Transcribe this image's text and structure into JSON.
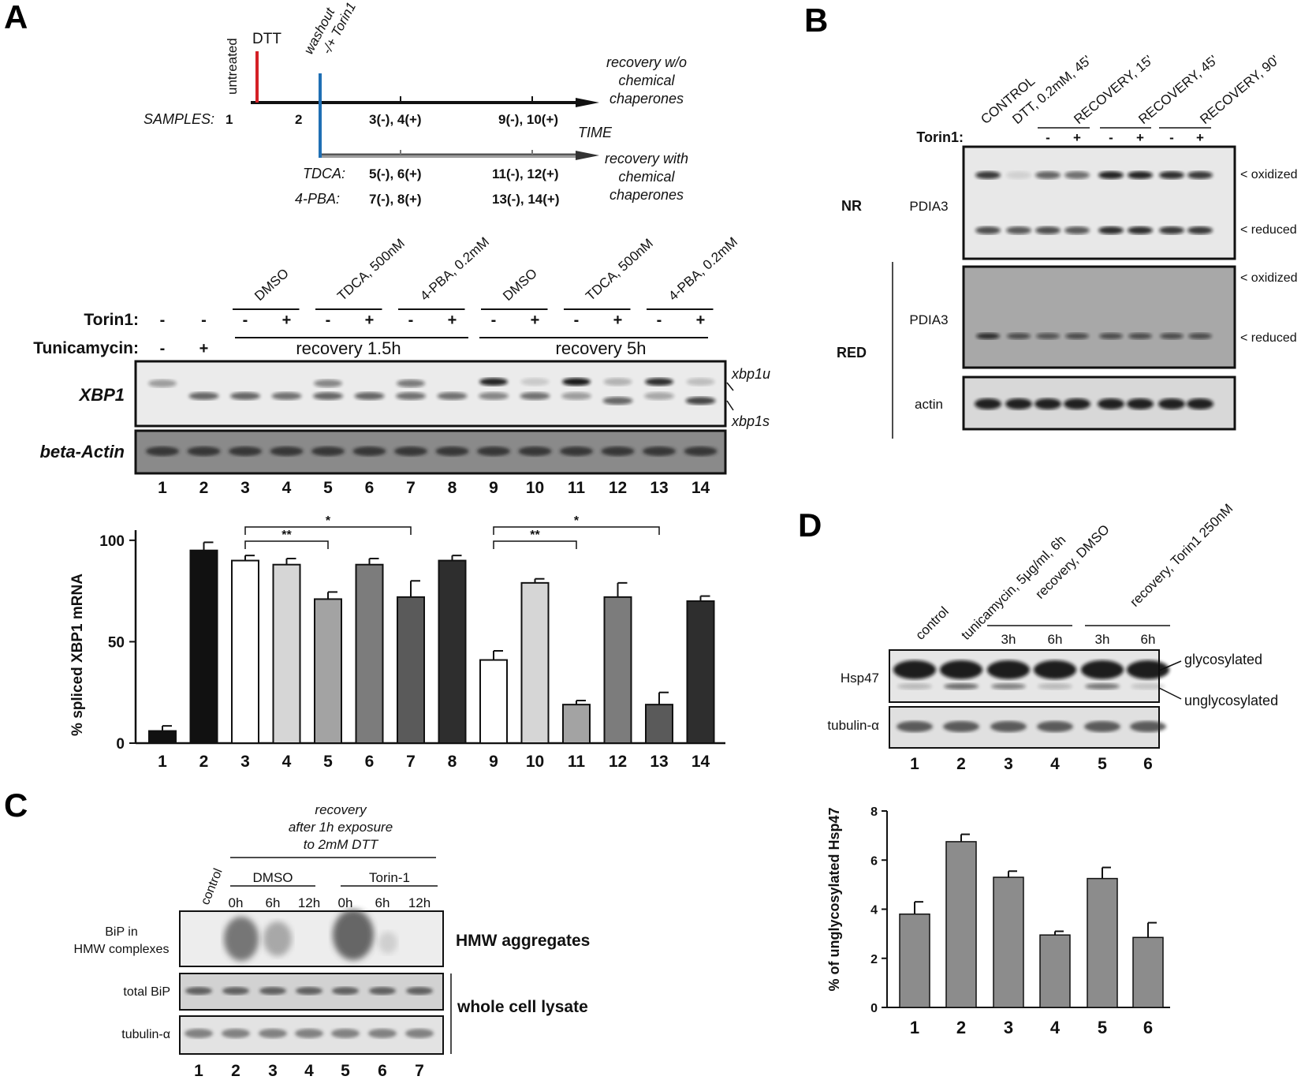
{
  "panels": {
    "A": "A",
    "B": "B",
    "C": "C",
    "D": "D"
  },
  "panelA": {
    "timeline": {
      "untreated": "untreated",
      "dtt": "DTT",
      "washout": "washout",
      "torin": "-/+ Torin1",
      "samples_label": "SAMPLES:",
      "s1": "1",
      "s2": "2",
      "s34": "3(-), 4(+)",
      "s910": "9(-), 10(+)",
      "time": "TIME",
      "recovery_wo": [
        "recovery w/o",
        "chemical",
        "chaperones"
      ],
      "recovery_with": [
        "recovery with",
        "chemical",
        "chaperones"
      ],
      "tdca_label": "TDCA:",
      "s56": "5(-), 6(+)",
      "s1112": "11(-), 12(+)",
      "pba_label": "4-PBA:",
      "s78": "7(-), 8(+)",
      "s1314": "13(-), 14(+)"
    },
    "treatments": [
      "DMSO",
      "TDCA, 500nM",
      "4-PBA, 0.2mM",
      "DMSO",
      "TDCA, 500nM",
      "4-PBA, 0.2mM"
    ],
    "torin_label": "Torin1:",
    "tunicamycin_label": "Tunicamycin:",
    "torin_signs": [
      "-",
      "-",
      "-",
      "+",
      "-",
      "+",
      "-",
      "+",
      "-",
      "+",
      "-",
      "+",
      "-",
      "+"
    ],
    "tunicamycin_signs": [
      "-",
      "+"
    ],
    "recovery_15": "recovery 1.5h",
    "recovery_5": "recovery 5h",
    "gel_rows": [
      "XBP1",
      "beta-Actin"
    ],
    "band_labels": [
      "xbp1u",
      "xbp1s"
    ],
    "lanes": [
      "1",
      "2",
      "3",
      "4",
      "5",
      "6",
      "7",
      "8",
      "9",
      "10",
      "11",
      "12",
      "13",
      "14"
    ],
    "chart_data": {
      "type": "bar",
      "ylabel": "% spliced XBP1 mRNA",
      "categories": [
        "1",
        "2",
        "3",
        "4",
        "5",
        "6",
        "7",
        "8",
        "9",
        "10",
        "11",
        "12",
        "13",
        "14"
      ],
      "values": [
        6,
        95,
        90,
        88,
        71,
        88,
        72,
        90,
        41,
        79,
        19,
        72,
        19,
        70
      ],
      "errors": [
        2.5,
        4,
        2.5,
        3,
        3.5,
        3,
        8,
        2.5,
        4.5,
        2,
        2,
        7,
        6,
        2.5
      ],
      "colors": [
        "#111111",
        "#111111",
        "#ffffff",
        "#d6d6d6",
        "#a3a3a3",
        "#7c7c7c",
        "#5a5a5a",
        "#2e2e2e",
        "#ffffff",
        "#d6d6d6",
        "#a3a3a3",
        "#7c7c7c",
        "#5a5a5a",
        "#2e2e2e"
      ],
      "ylim": [
        0,
        105
      ],
      "yticks": [
        0,
        50,
        100
      ],
      "significance": [
        {
          "from": "3",
          "to": "5",
          "label": "**"
        },
        {
          "from": "3",
          "to": "7",
          "label": "*"
        },
        {
          "from": "9",
          "to": "11",
          "label": "**"
        },
        {
          "from": "9",
          "to": "13",
          "label": "*"
        }
      ]
    }
  },
  "panelB": {
    "columns": [
      "CONTROL",
      "DTT, 0.2mM, 45'",
      "RECOVERY, 15'",
      "RECOVERY, 45'",
      "RECOVERY, 90'"
    ],
    "torin_label": "Torin1:",
    "torin_signs": [
      "-",
      "+",
      "-",
      "+",
      "-",
      "+"
    ],
    "nr": "NR",
    "red": "RED",
    "protein": "PDIA3",
    "actin": "actin",
    "oxidized": "< oxidized",
    "reduced": "< reduced"
  },
  "panelC": {
    "title": [
      "recovery",
      "after 1h exposure",
      "to 2mM DTT"
    ],
    "control": "control",
    "dmso": "DMSO",
    "torin": "Torin-1",
    "times": [
      "0h",
      "6h",
      "12h",
      "0h",
      "6h",
      "12h"
    ],
    "rows": [
      "BiP in",
      "HMW complexes",
      "total BiP",
      "tubulin-α"
    ],
    "hmw": "HMW aggregates",
    "wcl": "whole cell lysate",
    "lanes": [
      "1",
      "2",
      "3",
      "4",
      "5",
      "6",
      "7"
    ]
  },
  "panelD": {
    "columns": [
      "control",
      "tunicamycin, 5μg/ml, 6h",
      "recovery, DMSO",
      "recovery, Torin1 250nM"
    ],
    "times": [
      "3h",
      "6h",
      "3h",
      "6h"
    ],
    "rows": [
      "Hsp47",
      "tubulin-α"
    ],
    "glycosylated": "glycosylated",
    "unglycosylated": "unglycosylated",
    "lanes": [
      "1",
      "2",
      "3",
      "4",
      "5",
      "6"
    ],
    "chart_data": {
      "type": "bar",
      "ylabel": "% of unglycosylated Hsp47",
      "categories": [
        "1",
        "2",
        "3",
        "4",
        "5",
        "6"
      ],
      "values": [
        3.8,
        6.75,
        5.3,
        2.95,
        5.25,
        2.85
      ],
      "errors": [
        0.5,
        0.3,
        0.25,
        0.15,
        0.45,
        0.6
      ],
      "ylim": [
        0,
        8
      ],
      "yticks": [
        0,
        2,
        4,
        6,
        8
      ],
      "color": "#8c8c8c"
    }
  }
}
